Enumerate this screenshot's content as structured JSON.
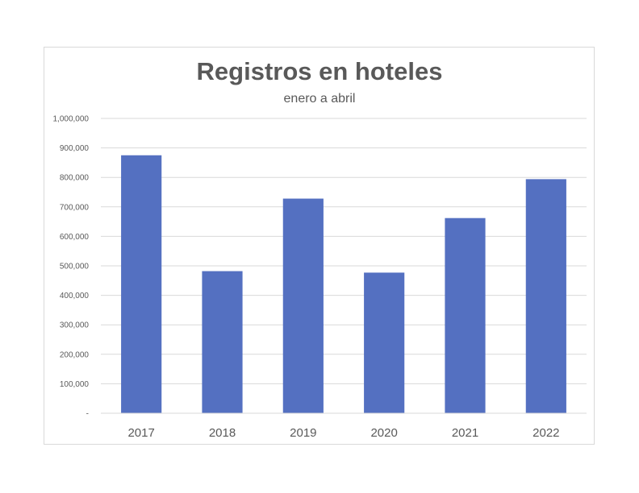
{
  "chart_data": {
    "type": "bar",
    "title": "Registros en hoteles",
    "subtitle": "enero a abril",
    "xlabel": "",
    "ylabel": "",
    "categories": [
      "2017",
      "2018",
      "2019",
      "2020",
      "2021",
      "2022"
    ],
    "values": [
      875000,
      482000,
      728000,
      477000,
      662000,
      794000
    ],
    "ylim": [
      0,
      1000000
    ],
    "yticks": [
      0,
      100000,
      200000,
      300000,
      400000,
      500000,
      600000,
      700000,
      800000,
      900000,
      1000000
    ],
    "ytick_labels": [
      "-",
      "100,000",
      "200,000",
      "300,000",
      "400,000",
      "500,000",
      "600,000",
      "700,000",
      "800,000",
      "900,000",
      "1,000,000"
    ],
    "grid": true,
    "legend": "none",
    "bar_color": "#5470C1",
    "gridline_color": "#d9d9d9",
    "text_color": "#595959"
  }
}
